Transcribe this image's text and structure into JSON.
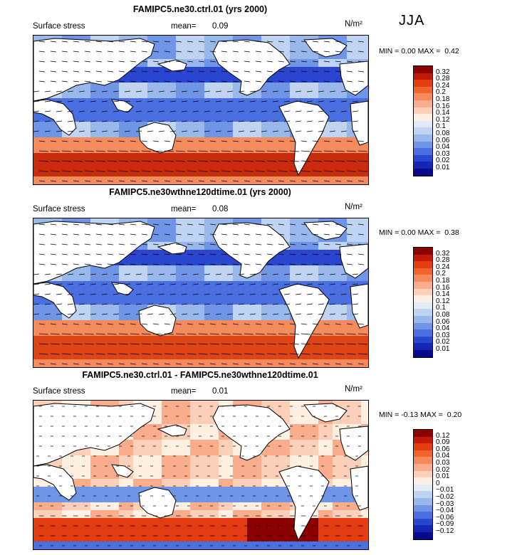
{
  "season": "JJA",
  "panels": [
    {
      "title": "FAMIPC5.ne30.ctrl.01 (yrs 2000)",
      "variable": "Surface stress",
      "mean_label": "mean=",
      "mean_value": "0.09",
      "units": "N/m²",
      "min_label": "MIN =",
      "min_value": "0.00",
      "max_label": "MAX =",
      "max_value": "0.42",
      "colorbar": {
        "levels": [
          "0.32",
          "0.28",
          "0.24",
          "0.2",
          "0.18",
          "0.16",
          "0.14",
          "0.12",
          "0.1",
          "0.08",
          "0.06",
          "0.04",
          "0.03",
          "0.02",
          "0.01"
        ],
        "colors": [
          "#8b0000",
          "#c21a06",
          "#e23c10",
          "#f0652a",
          "#f58a5c",
          "#f9ad8d",
          "#fccfb8",
          "#fff0e2",
          "#e1ebf8",
          "#bfd4f2",
          "#98b8ec",
          "#6f95e6",
          "#4a6fe0",
          "#2a45d0",
          "#1626b4",
          "#070b8a"
        ]
      }
    },
    {
      "title": "FAMIPC5.ne30wthne120dtime.01 (yrs 2000)",
      "variable": "Surface stress",
      "mean_label": "mean=",
      "mean_value": "0.08",
      "units": "N/m²",
      "min_label": "MIN =",
      "min_value": "0.00",
      "max_label": "MAX =",
      "max_value": "0.38",
      "colorbar": {
        "levels": [
          "0.32",
          "0.28",
          "0.24",
          "0.2",
          "0.18",
          "0.16",
          "0.14",
          "0.12",
          "0.1",
          "0.08",
          "0.06",
          "0.04",
          "0.03",
          "0.02",
          "0.01"
        ],
        "colors": [
          "#8b0000",
          "#c21a06",
          "#e23c10",
          "#f0652a",
          "#f58a5c",
          "#f9ad8d",
          "#fccfb8",
          "#fff0e2",
          "#e1ebf8",
          "#bfd4f2",
          "#98b8ec",
          "#6f95e6",
          "#4a6fe0",
          "#2a45d0",
          "#1626b4",
          "#070b8a"
        ]
      }
    },
    {
      "title": "FAMIPC5.ne30.ctrl.01 - FAMIPC5.ne30wthne120dtime.01",
      "variable": "Surface stress",
      "mean_label": "mean=",
      "mean_value": "0.01",
      "units": "N/m²",
      "min_label": "MIN =",
      "min_value": "-0.13",
      "max_label": "MAX =",
      "max_value": "0.20",
      "colorbar": {
        "levels": [
          "0.12",
          "0.09",
          "0.06",
          "0.04",
          "0.03",
          "0.02",
          "0.01",
          "0",
          "−0.01",
          "−0.02",
          "−0.03",
          "−0.04",
          "−0.06",
          "−0.09",
          "−0.12"
        ],
        "colors": [
          "#8b0000",
          "#c21a06",
          "#e23c10",
          "#f0652a",
          "#f58a5c",
          "#f9ad8d",
          "#fccfb8",
          "#fff0e2",
          "#e1ebf8",
          "#bfd4f2",
          "#98b8ec",
          "#6f95e6",
          "#4a6fe0",
          "#2a45d0",
          "#1626b4",
          "#070b8a"
        ]
      }
    }
  ]
}
